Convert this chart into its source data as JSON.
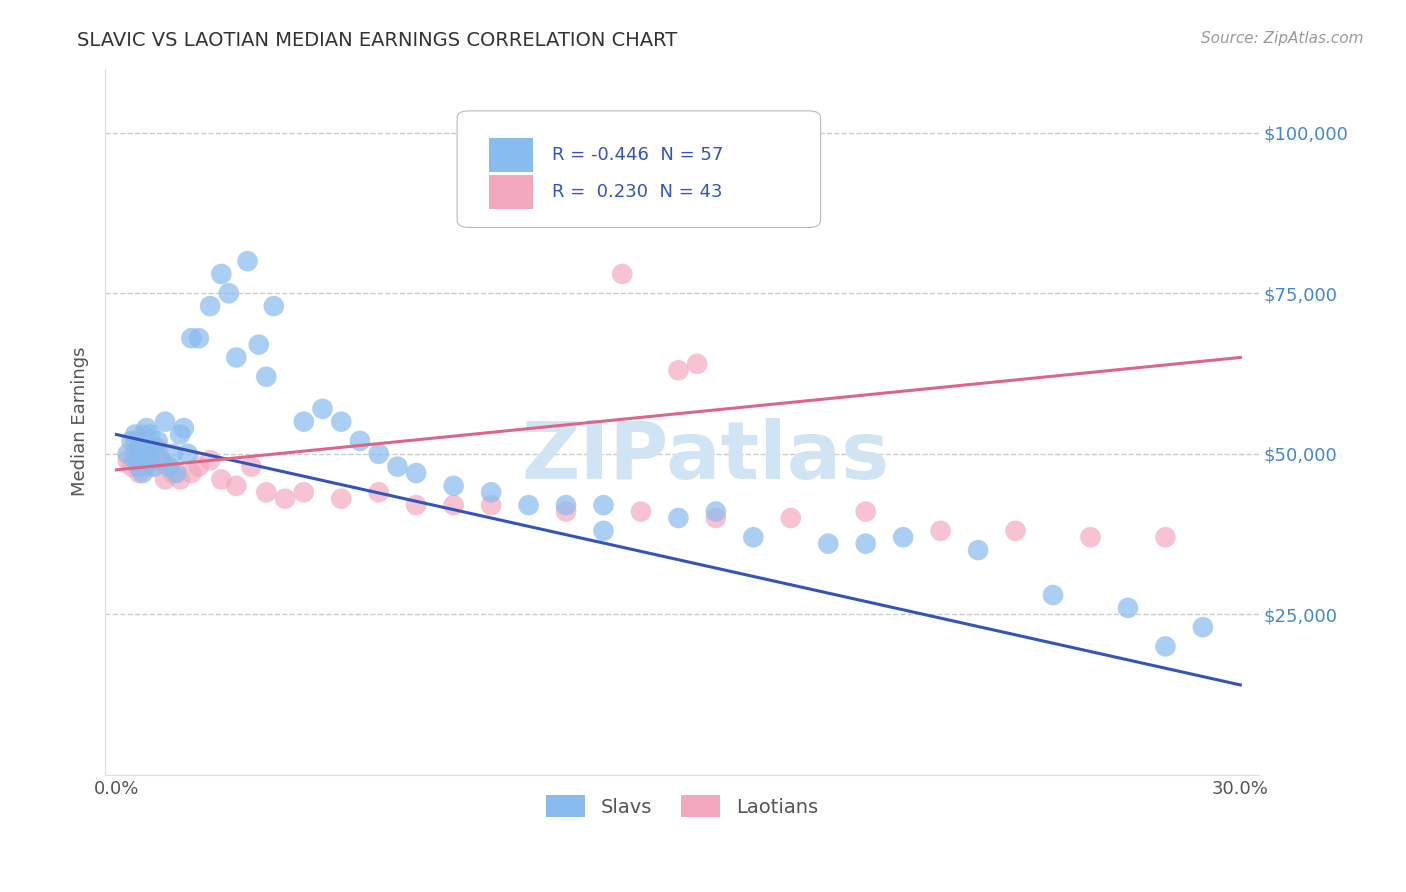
{
  "title": "SLAVIC VS LAOTIAN MEDIAN EARNINGS CORRELATION CHART",
  "source": "Source: ZipAtlas.com",
  "ylabel": "Median Earnings",
  "xlim": [
    -0.003,
    0.305
  ],
  "ylim": [
    0,
    110000
  ],
  "xtick_positions": [
    0.0,
    0.3
  ],
  "xtick_labels": [
    "0.0%",
    "30.0%"
  ],
  "ytick_values": [
    25000,
    50000,
    75000,
    100000
  ],
  "ytick_labels": [
    "$25,000",
    "$50,000",
    "$75,000",
    "$100,000"
  ],
  "slavs_color": "#88bbee",
  "laotians_color": "#f4a8be",
  "slavs_line_color": "#3355bb",
  "laotians_line_color": "#dd6688",
  "legend_R_slavs": "-0.446",
  "legend_N_slavs": "57",
  "legend_R_laotians": " 0.230",
  "legend_N_laotians": "43",
  "background_color": "#ffffff",
  "grid_color": "#cccccc",
  "title_color": "#333333",
  "source_color": "#999999",
  "axis_color": "#555555",
  "right_tick_color": "#4488cc",
  "watermark_text": "ZIPatlas",
  "watermark_color": "#d0e4f4",
  "slavs_line_x0": 0.0,
  "slavs_line_y0": 53000,
  "slavs_line_x1": 0.3,
  "slavs_line_y1": 14000,
  "laotians_line_x0": 0.0,
  "laotians_line_y0": 47500,
  "laotians_line_x1": 0.3,
  "laotians_line_y1": 65000,
  "slavs_x": [
    0.003,
    0.004,
    0.005,
    0.005,
    0.006,
    0.006,
    0.007,
    0.007,
    0.008,
    0.008,
    0.009,
    0.009,
    0.01,
    0.01,
    0.011,
    0.012,
    0.013,
    0.014,
    0.015,
    0.016,
    0.017,
    0.018,
    0.019,
    0.02,
    0.022,
    0.025,
    0.028,
    0.03,
    0.032,
    0.035,
    0.038,
    0.04,
    0.042,
    0.05,
    0.055,
    0.06,
    0.065,
    0.07,
    0.075,
    0.08,
    0.09,
    0.1,
    0.11,
    0.12,
    0.13,
    0.15,
    0.17,
    0.19,
    0.21,
    0.23,
    0.25,
    0.27,
    0.29,
    0.13,
    0.16,
    0.2,
    0.28
  ],
  "slavs_y": [
    50000,
    52000,
    49000,
    53000,
    48000,
    51000,
    47000,
    50000,
    50000,
    54000,
    49000,
    53000,
    48000,
    51000,
    52000,
    49000,
    55000,
    48000,
    50000,
    47000,
    53000,
    54000,
    50000,
    68000,
    68000,
    73000,
    78000,
    75000,
    65000,
    80000,
    67000,
    62000,
    73000,
    55000,
    57000,
    55000,
    52000,
    50000,
    48000,
    47000,
    45000,
    44000,
    42000,
    42000,
    42000,
    40000,
    37000,
    36000,
    37000,
    35000,
    28000,
    26000,
    23000,
    38000,
    41000,
    36000,
    20000
  ],
  "laotians_x": [
    0.003,
    0.004,
    0.005,
    0.005,
    0.006,
    0.006,
    0.007,
    0.007,
    0.008,
    0.008,
    0.009,
    0.01,
    0.011,
    0.012,
    0.013,
    0.015,
    0.017,
    0.02,
    0.022,
    0.025,
    0.028,
    0.032,
    0.036,
    0.04,
    0.045,
    0.05,
    0.06,
    0.07,
    0.08,
    0.09,
    0.1,
    0.12,
    0.14,
    0.16,
    0.18,
    0.2,
    0.22,
    0.24,
    0.26,
    0.28,
    0.15,
    0.155,
    0.135
  ],
  "laotians_y": [
    49000,
    48000,
    50000,
    52000,
    51000,
    47000,
    50000,
    53000,
    49000,
    52000,
    48000,
    50000,
    51000,
    49000,
    46000,
    47000,
    46000,
    47000,
    48000,
    49000,
    46000,
    45000,
    48000,
    44000,
    43000,
    44000,
    43000,
    44000,
    42000,
    42000,
    42000,
    41000,
    41000,
    40000,
    40000,
    41000,
    38000,
    38000,
    37000,
    37000,
    63000,
    64000,
    78000
  ]
}
